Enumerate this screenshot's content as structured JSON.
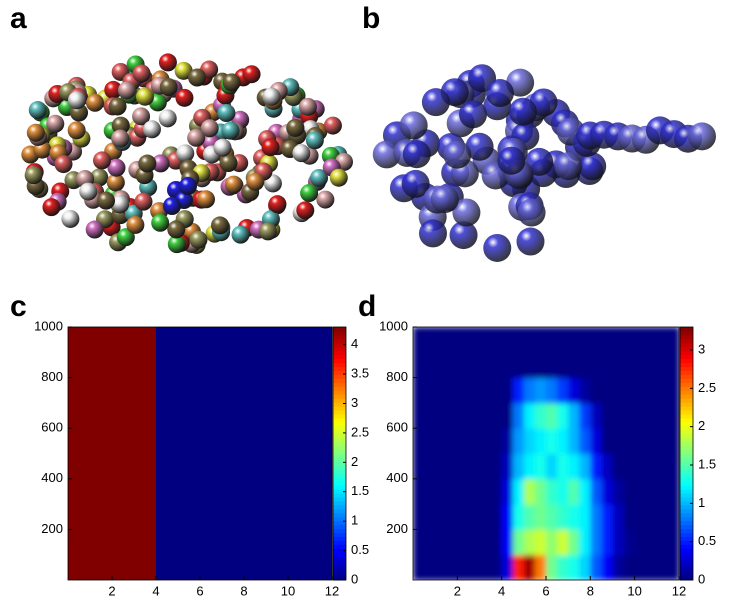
{
  "panel_labels": [
    "a",
    "b",
    "c",
    "d"
  ],
  "chart_data": [
    {
      "type": "heatmap",
      "xlim": [
        0,
        12
      ],
      "ylim": [
        0,
        1000
      ],
      "xticks": [
        2,
        4,
        6,
        8,
        10,
        12
      ],
      "yticks": [
        200,
        400,
        600,
        800,
        1000
      ],
      "clim": [
        0,
        4.3
      ],
      "cticks": [
        0,
        0.5,
        1,
        1.5,
        2,
        2.5,
        3,
        3.5,
        4
      ],
      "colormap": "jet",
      "z": [
        [
          4.3,
          4.3,
          4.3,
          4.3,
          4.3,
          4.3,
          4.3,
          4.3,
          0,
          0,
          0,
          0,
          0,
          0,
          0,
          0,
          0,
          0,
          0,
          0,
          0,
          0,
          0,
          0
        ],
        [
          4.3,
          4.3,
          4.3,
          4.3,
          4.3,
          4.3,
          4.3,
          4.3,
          0,
          0,
          0,
          0,
          0,
          0,
          0,
          0,
          0,
          0,
          0,
          0,
          0,
          0,
          0,
          0
        ],
        [
          4.3,
          4.3,
          4.3,
          4.3,
          4.3,
          4.3,
          4.3,
          4.3,
          0,
          0,
          0,
          0,
          0,
          0,
          0,
          0,
          0,
          0,
          0,
          0,
          0,
          0,
          0,
          0
        ],
        [
          4.3,
          4.3,
          4.3,
          4.3,
          4.3,
          4.3,
          4.3,
          4.3,
          0,
          0,
          0,
          0,
          0,
          0,
          0,
          0,
          0,
          0,
          0,
          0,
          0,
          0,
          0,
          0
        ],
        [
          4.3,
          4.3,
          4.3,
          4.3,
          4.3,
          4.3,
          4.3,
          4.3,
          0,
          0,
          0,
          0,
          0,
          0,
          0,
          0,
          0,
          0,
          0,
          0,
          0,
          0,
          0,
          0
        ],
        [
          4.3,
          4.3,
          4.3,
          4.3,
          4.3,
          4.3,
          4.3,
          4.3,
          0,
          0,
          0,
          0,
          0,
          0,
          0,
          0,
          0,
          0,
          0,
          0,
          0,
          0,
          0,
          0
        ],
        [
          4.3,
          4.3,
          4.3,
          4.3,
          4.3,
          4.3,
          4.3,
          4.3,
          0,
          0,
          0,
          0,
          0,
          0,
          0,
          0,
          0,
          0,
          0,
          0,
          0,
          0,
          0,
          0
        ],
        [
          4.3,
          4.3,
          4.3,
          4.3,
          4.3,
          4.3,
          4.3,
          4.3,
          0,
          0,
          0,
          0,
          0,
          0,
          0,
          0,
          0,
          0,
          0,
          0,
          0,
          0,
          0,
          0
        ],
        [
          4.3,
          4.3,
          4.3,
          4.3,
          4.3,
          4.3,
          4.3,
          4.3,
          0,
          0,
          0,
          0,
          0,
          0,
          0,
          0,
          0,
          0,
          0,
          0,
          0,
          0,
          0,
          0
        ],
        [
          4.3,
          4.3,
          4.3,
          4.3,
          4.3,
          4.3,
          4.3,
          4.3,
          0,
          0,
          0,
          0,
          0,
          0,
          0,
          0,
          0,
          0,
          0,
          0,
          0,
          0,
          0,
          0
        ]
      ]
    },
    {
      "type": "heatmap",
      "xlim": [
        0,
        12
      ],
      "ylim": [
        0,
        1000
      ],
      "xticks": [
        2,
        4,
        6,
        8,
        10,
        12
      ],
      "yticks": [
        200,
        400,
        600,
        800,
        1000
      ],
      "clim": [
        0,
        3.3
      ],
      "cticks": [
        0,
        0.5,
        1,
        1.5,
        2,
        2.5,
        3
      ],
      "colormap": "jet",
      "z": [
        [
          0,
          0,
          0,
          0,
          0,
          0,
          0,
          0,
          0.3,
          2.8,
          3.2,
          2.5,
          1.6,
          1.4,
          1.3,
          1.1,
          0.7,
          0.4,
          0.1,
          0,
          0,
          0,
          0,
          0
        ],
        [
          0,
          0,
          0,
          0,
          0,
          0,
          0,
          0,
          0.4,
          1.6,
          1.8,
          1.9,
          1.7,
          1.9,
          1.6,
          1.2,
          0.8,
          0.5,
          0.2,
          0.05,
          0,
          0,
          0,
          0
        ],
        [
          0,
          0,
          0,
          0,
          0,
          0,
          0,
          0,
          0.4,
          1.3,
          1.5,
          1.6,
          1.5,
          1.4,
          1.3,
          1.2,
          0.8,
          0.5,
          0.2,
          0,
          0,
          0,
          0,
          0
        ],
        [
          0,
          0,
          0,
          0,
          0,
          0,
          0,
          0,
          0.3,
          1.2,
          1.8,
          1.6,
          1.4,
          1.3,
          1.5,
          1.2,
          0.7,
          0.3,
          0.1,
          0,
          0,
          0,
          0,
          0
        ],
        [
          0,
          0,
          0,
          0,
          0,
          0,
          0,
          0,
          0.2,
          1.0,
          1.2,
          1.3,
          1.1,
          1.3,
          1.2,
          1.0,
          0.5,
          0.2,
          0,
          0,
          0,
          0,
          0,
          0
        ],
        [
          0,
          0,
          0,
          0,
          0,
          0,
          0,
          0,
          0.1,
          0.9,
          1.1,
          1.2,
          1.3,
          1.2,
          1.0,
          0.7,
          0.3,
          0,
          0,
          0,
          0,
          0,
          0,
          0
        ],
        [
          0,
          0,
          0,
          0,
          0,
          0,
          0,
          0,
          0,
          0.8,
          1.2,
          1.4,
          1.5,
          1.3,
          1.0,
          0.6,
          0.2,
          0,
          0,
          0,
          0,
          0,
          0,
          0
        ],
        [
          0,
          0,
          0,
          0,
          0,
          0,
          0,
          0,
          0,
          0.5,
          0.8,
          0.9,
          0.8,
          0.6,
          0.3,
          0.1,
          0,
          0,
          0,
          0,
          0,
          0,
          0,
          0
        ],
        [
          0,
          0,
          0,
          0,
          0,
          0,
          0,
          0,
          0,
          0,
          0,
          0,
          0,
          0,
          0,
          0,
          0,
          0,
          0,
          0,
          0,
          0,
          0,
          0
        ],
        [
          0,
          0,
          0,
          0,
          0,
          0,
          0,
          0,
          0,
          0,
          0,
          0,
          0,
          0,
          0,
          0,
          0,
          0,
          0,
          0,
          0,
          0,
          0,
          0
        ]
      ]
    }
  ]
}
